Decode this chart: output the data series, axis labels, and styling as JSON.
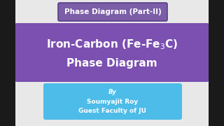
{
  "bg_color": "#e8e8e8",
  "title_box_color": "#7b5ea7",
  "title_box_edge": "#5a3d8a",
  "title_box_text": "Phase Diagram (Part-II)",
  "title_box_text_color": "#ffffff",
  "main_box_color_top": "#8b6abf",
  "main_box_color": "#7b50b0",
  "main_line1a": "Iron-Carbon (Fe-Fe",
  "main_sub": "3",
  "main_line1b": "C)",
  "main_line2": "Phase Diagram",
  "main_text_color": "#ffffff",
  "info_box_color": "#4dbce9",
  "info_line1": "By",
  "info_line2": "Soumyajit Roy",
  "info_line3": "Guest Faculty of JU",
  "info_text_color": "#ffffff",
  "side_bar_color": "#1a1a1a",
  "side_bar_width": 22
}
